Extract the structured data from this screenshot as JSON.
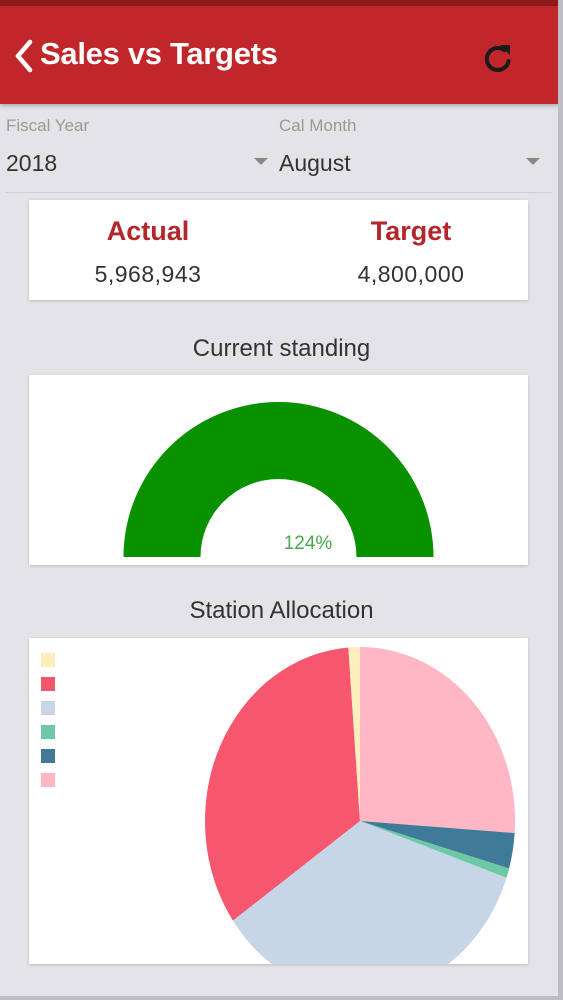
{
  "app": {
    "title": "Sales vs Targets"
  },
  "filters": {
    "fiscal_year": {
      "label": "Fiscal Year",
      "value": "2018"
    },
    "cal_month": {
      "label": "Cal Month",
      "value": "August"
    }
  },
  "kpi": {
    "actual": {
      "label": "Actual",
      "value": "5,968,943"
    },
    "target": {
      "label": "Target",
      "value": "4,800,000"
    }
  },
  "gauge": {
    "title": "Current standing",
    "percent_label": "124%",
    "fill_fraction": 1.0,
    "color": "#0a9100"
  },
  "pie": {
    "title": "Station Allocation",
    "slices": [
      {
        "label": "",
        "value": 1.2,
        "color": "#fdeebd"
      },
      {
        "label": "",
        "value": 33.5,
        "color": "#f7566f"
      },
      {
        "label": "",
        "value": 35.0,
        "color": "#c6d6e6"
      },
      {
        "label": "",
        "value": 0.9,
        "color": "#6dc9a5"
      },
      {
        "label": "",
        "value": 3.3,
        "color": "#3f7a99"
      },
      {
        "label": "",
        "value": 26.1,
        "color": "#ffb6c5"
      }
    ]
  },
  "colors": {
    "appbar": "#c0262a",
    "accent_text": "#b3262a",
    "background": "#e4e3e8"
  },
  "icons": {
    "back": "chevron-left-icon",
    "refresh": "refresh-icon"
  }
}
